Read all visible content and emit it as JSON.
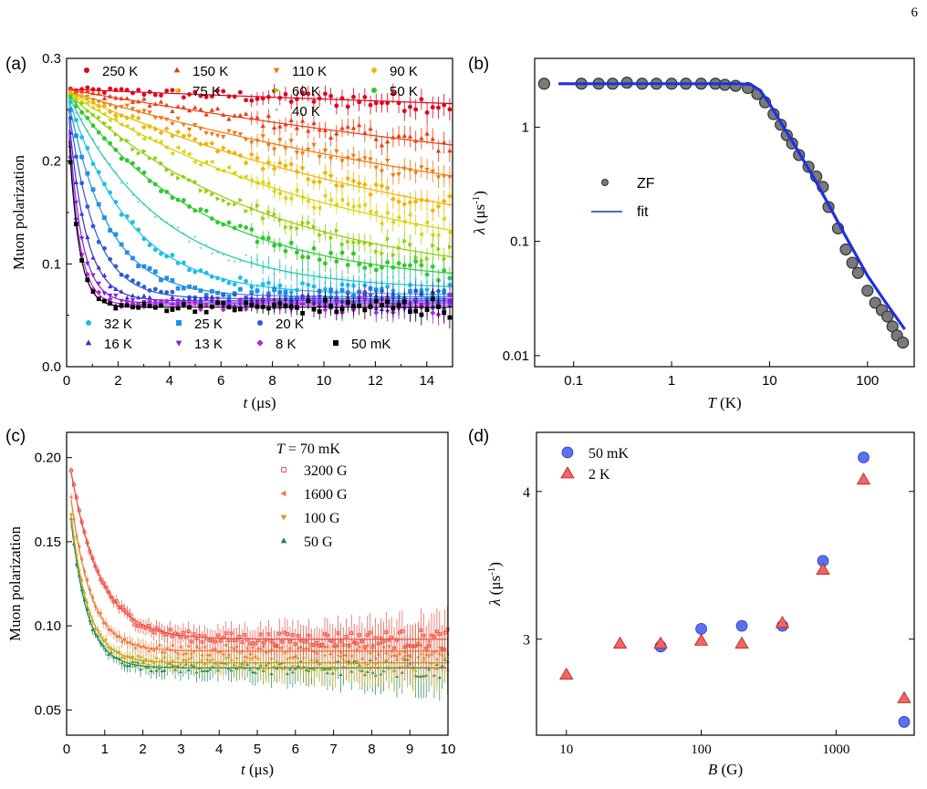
{
  "page_number": "6",
  "chart_data": [
    {
      "panel": "(a)",
      "type": "scatter",
      "xlabel_var": "t",
      "xlabel_unit": "(μs)",
      "ylabel": "Muon polarization",
      "xlim": [
        0,
        15
      ],
      "ylim": [
        0,
        0.3
      ],
      "xticks": [
        0,
        2,
        4,
        6,
        8,
        10,
        12,
        14
      ],
      "yticks": [
        0.0,
        0.1,
        0.2,
        0.3
      ],
      "ytick_labels": [
        "0.0",
        "0.1",
        "0.2",
        "0.3"
      ],
      "legend_top": [
        "250 K",
        "150 K",
        "110 K",
        "90 K",
        "75 K",
        "60 K",
        "50 K",
        "40 K"
      ],
      "legend_bottom": [
        "32 K",
        "25 K",
        "20 K",
        "16 K",
        "13 K",
        "8 K",
        "50 mK"
      ],
      "series": [
        {
          "name": "250 K",
          "color": "#e3001b",
          "marker": "circle",
          "a0": 0.27,
          "base": 0.185,
          "lambda": 0.012,
          "beta": 1.0
        },
        {
          "name": "150 K",
          "color": "#f03a10",
          "marker": "triangle-up",
          "a0": 0.27,
          "base": 0.12,
          "lambda": 0.03,
          "beta": 1.0
        },
        {
          "name": "110 K",
          "color": "#f5760d",
          "marker": "triangle-down",
          "a0": 0.268,
          "base": 0.1,
          "lambda": 0.045,
          "beta": 1.0
        },
        {
          "name": "90 K",
          "color": "#f0b400",
          "marker": "diamond",
          "a0": 0.268,
          "base": 0.09,
          "lambda": 0.065,
          "beta": 1.0
        },
        {
          "name": "75 K",
          "color": "#d6d200",
          "marker": "triangle-left",
          "a0": 0.268,
          "base": 0.085,
          "lambda": 0.09,
          "beta": 1.0
        },
        {
          "name": "60 K",
          "color": "#8ccf00",
          "marker": "triangle-right",
          "a0": 0.268,
          "base": 0.08,
          "lambda": 0.13,
          "beta": 1.0
        },
        {
          "name": "50 K",
          "color": "#2ec92e",
          "marker": "hexagon",
          "a0": 0.268,
          "base": 0.08,
          "lambda": 0.19,
          "beta": 1.0
        },
        {
          "name": "40 K",
          "color": "#19c9a8",
          "marker": "star",
          "a0": 0.268,
          "base": 0.075,
          "lambda": 0.28,
          "beta": 1.0
        },
        {
          "name": "32 K",
          "color": "#17c0e6",
          "marker": "circle",
          "a0": 0.268,
          "base": 0.07,
          "lambda": 0.42,
          "beta": 1.0
        },
        {
          "name": "25 K",
          "color": "#1f8fe8",
          "marker": "square",
          "a0": 0.268,
          "base": 0.068,
          "lambda": 0.65,
          "beta": 1.0
        },
        {
          "name": "20 K",
          "color": "#2a5be0",
          "marker": "circle",
          "a0": 0.268,
          "base": 0.066,
          "lambda": 1.0,
          "beta": 1.0
        },
        {
          "name": "16 K",
          "color": "#3b2fd6",
          "marker": "triangle-up",
          "a0": 0.268,
          "base": 0.064,
          "lambda": 1.5,
          "beta": 1.0
        },
        {
          "name": "13 K",
          "color": "#7b1fdc",
          "marker": "triangle-down",
          "a0": 0.268,
          "base": 0.062,
          "lambda": 2.0,
          "beta": 1.0
        },
        {
          "name": "8 K",
          "color": "#b21fd9",
          "marker": "diamond",
          "a0": 0.268,
          "base": 0.06,
          "lambda": 2.4,
          "beta": 1.0
        },
        {
          "name": "50 mK",
          "color": "#000000",
          "marker": "square",
          "a0": 0.268,
          "base": 0.058,
          "lambda": 2.6,
          "beta": 1.0
        }
      ]
    },
    {
      "panel": "(b)",
      "type": "scatter",
      "xlabel_var": "T",
      "xlabel_unit": "(K)",
      "ylabel_var": "λ",
      "ylabel_unit": "(μs",
      "ylabel_exp": "-1",
      "ylabel_close": ")",
      "xscale": "log",
      "yscale": "log",
      "xlim": [
        0.04,
        300
      ],
      "ylim": [
        0.008,
        4
      ],
      "xticks": [
        0.1,
        1,
        10,
        100
      ],
      "xtick_labels": [
        "0.1",
        "1",
        "10",
        "100"
      ],
      "yticks": [
        0.01,
        0.1,
        1
      ],
      "ytick_labels": [
        "0.01",
        "0.1",
        "1"
      ],
      "legend": [
        "ZF",
        "fit"
      ],
      "points_x": [
        0.05,
        0.12,
        0.18,
        0.25,
        0.35,
        0.5,
        0.7,
        1.0,
        1.4,
        2.0,
        2.8,
        3.5,
        4.5,
        6.0,
        7.5,
        9.0,
        11,
        13,
        15,
        17,
        20,
        25,
        30,
        35,
        40,
        50,
        60,
        70,
        80,
        100,
        120,
        140,
        160,
        180,
        200,
        230
      ],
      "points_y": [
        2.4,
        2.4,
        2.4,
        2.4,
        2.45,
        2.4,
        2.4,
        2.4,
        2.4,
        2.4,
        2.4,
        2.35,
        2.3,
        2.2,
        1.95,
        1.65,
        1.3,
        1.05,
        0.85,
        0.72,
        0.57,
        0.45,
        0.37,
        0.3,
        0.2,
        0.13,
        0.085,
        0.065,
        0.053,
        0.037,
        0.029,
        0.025,
        0.022,
        0.018,
        0.015,
        0.013
      ],
      "fit_x": [
        0.07,
        5.0,
        6.5,
        8.0,
        10,
        15,
        20,
        30,
        40,
        60,
        100,
        150,
        240
      ],
      "fit_y": [
        2.4,
        2.4,
        2.35,
        2.1,
        1.6,
        0.9,
        0.6,
        0.33,
        0.21,
        0.11,
        0.05,
        0.03,
        0.017
      ]
    },
    {
      "panel": "(c)",
      "type": "scatter",
      "xlabel_var": "t",
      "xlabel_unit": "(μs)",
      "ylabel": "Muon polarization",
      "xlim": [
        0,
        10
      ],
      "ylim": [
        0.035,
        0.215
      ],
      "xticks": [
        0,
        1,
        2,
        3,
        4,
        5,
        6,
        7,
        8,
        9,
        10
      ],
      "yticks": [
        0.05,
        0.1,
        0.15,
        0.2
      ],
      "ytick_labels": [
        "0.05",
        "0.10",
        "0.15",
        "0.20"
      ],
      "legend_title_var": "T",
      "legend_title_value": " = 70 mK",
      "legend": [
        "3200 G",
        "1600 G",
        "100 G",
        "50 G"
      ],
      "series": [
        {
          "name": "3200 G",
          "color": "#ef4f44",
          "marker": "square-open",
          "a0": 0.208,
          "base": 0.092,
          "lambda": 1.3
        },
        {
          "name": "1600 G",
          "color": "#ee7d3c",
          "marker": "triangle-left",
          "a0": 0.198,
          "base": 0.085,
          "lambda": 1.9
        },
        {
          "name": "100 G",
          "color": "#c9a418",
          "marker": "triangle-down",
          "a0": 0.192,
          "base": 0.078,
          "lambda": 2.2
        },
        {
          "name": "50 G",
          "color": "#158a5a",
          "marker": "triangle-up",
          "a0": 0.19,
          "base": 0.075,
          "lambda": 2.3
        }
      ]
    },
    {
      "panel": "(d)",
      "type": "scatter",
      "xlabel_var": "B",
      "xlabel_unit": "(G)",
      "ylabel_var": "λ",
      "ylabel_unit": "(μs",
      "ylabel_exp": "-1",
      "ylabel_close": ")",
      "xscale": "log",
      "xlim": [
        6,
        3800
      ],
      "ylim": [
        2.35,
        4.4
      ],
      "xticks": [
        10,
        100,
        1000
      ],
      "xtick_labels": [
        "10",
        "100",
        "1000"
      ],
      "yticks": [
        3,
        4
      ],
      "ytick_labels": [
        "3",
        "4"
      ],
      "legend": [
        "50 mK",
        "2 K"
      ],
      "series": [
        {
          "name": "50 mK",
          "color": "#5b6ff0",
          "marker": "circle",
          "x": [
            50,
            100,
            200,
            400,
            800,
            1600,
            3200
          ],
          "y": [
            2.95,
            3.07,
            3.09,
            3.09,
            3.53,
            4.23,
            2.44
          ]
        },
        {
          "name": "2 K",
          "color": "#f26565",
          "marker": "triangle-up",
          "x": [
            10,
            25,
            50,
            100,
            200,
            400,
            800,
            1600,
            3200
          ],
          "y": [
            2.76,
            2.97,
            2.97,
            2.99,
            2.97,
            3.11,
            3.47,
            4.08,
            2.6
          ]
        }
      ]
    }
  ]
}
